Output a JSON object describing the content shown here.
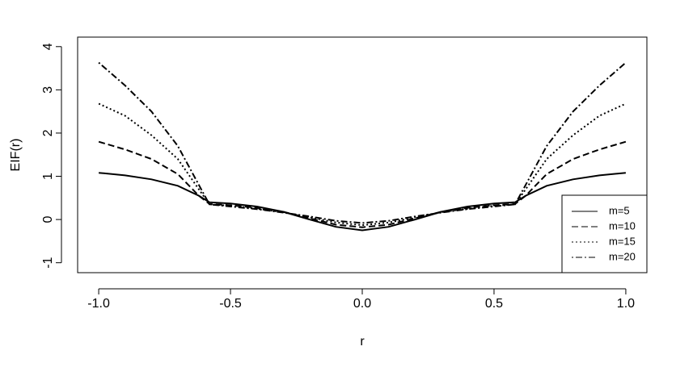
{
  "chart_data": {
    "type": "line",
    "x_label": "r",
    "y_label": "EIF(r)",
    "x": [
      -1,
      -0.9,
      -0.8,
      -0.7,
      -0.62,
      -0.58,
      -0.5,
      -0.4,
      -0.3,
      -0.2,
      -0.1,
      0,
      0.1,
      0.2,
      0.3,
      0.4,
      0.5,
      0.58,
      0.62,
      0.7,
      0.8,
      0.9,
      1
    ],
    "series": [
      {
        "name": "m=5",
        "color": "#000000",
        "linetype": "solid",
        "values": [
          1.08,
          1.02,
          0.93,
          0.78,
          0.55,
          0.4,
          0.37,
          0.3,
          0.18,
          0.0,
          -0.17,
          -0.25,
          -0.17,
          0.0,
          0.18,
          0.3,
          0.37,
          0.4,
          0.55,
          0.78,
          0.93,
          1.02,
          1.08
        ]
      },
      {
        "name": "m=10",
        "color": "#000000",
        "linetype": "dashed",
        "values": [
          1.8,
          1.62,
          1.4,
          1.05,
          0.55,
          0.36,
          0.33,
          0.27,
          0.18,
          0.03,
          -0.12,
          -0.18,
          -0.12,
          0.03,
          0.18,
          0.27,
          0.33,
          0.36,
          0.55,
          1.05,
          1.4,
          1.62,
          1.8
        ]
      },
      {
        "name": "m=15",
        "color": "#000000",
        "linetype": "dotted",
        "values": [
          2.68,
          2.4,
          1.95,
          1.4,
          0.7,
          0.35,
          0.32,
          0.25,
          0.17,
          0.05,
          -0.07,
          -0.13,
          -0.07,
          0.05,
          0.17,
          0.25,
          0.32,
          0.35,
          0.7,
          1.4,
          1.95,
          2.4,
          2.68
        ]
      },
      {
        "name": "m=20",
        "color": "#000000",
        "linetype": "dotdash",
        "values": [
          3.63,
          3.1,
          2.5,
          1.7,
          0.8,
          0.35,
          0.3,
          0.24,
          0.16,
          0.07,
          -0.03,
          -0.08,
          -0.03,
          0.07,
          0.16,
          0.24,
          0.3,
          0.35,
          0.8,
          1.7,
          2.5,
          3.1,
          3.63
        ]
      }
    ],
    "xlim": [
      -1.08,
      1.08
    ],
    "ylim": [
      -1.23,
      4.22
    ],
    "xticks": [
      {
        "value": -1,
        "label": "-1.0"
      },
      {
        "value": -0.5,
        "label": "-0.5"
      },
      {
        "value": 0,
        "label": "0.0"
      },
      {
        "value": 0.5,
        "label": "0.5"
      },
      {
        "value": 1,
        "label": "1.0"
      }
    ],
    "yticks": [
      -1,
      0,
      1,
      2,
      3,
      4
    ],
    "grid": false,
    "legend_position": "bottom-right"
  }
}
